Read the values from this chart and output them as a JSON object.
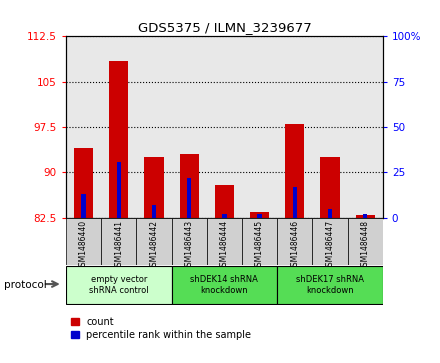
{
  "title": "GDS5375 / ILMN_3239677",
  "samples": [
    "GSM1486440",
    "GSM1486441",
    "GSM1486442",
    "GSM1486443",
    "GSM1486444",
    "GSM1486445",
    "GSM1486446",
    "GSM1486447",
    "GSM1486448"
  ],
  "red_values": [
    94.0,
    108.5,
    92.5,
    93.0,
    88.0,
    83.5,
    98.0,
    92.5,
    83.0
  ],
  "blue_values": [
    13.0,
    31.0,
    7.0,
    22.0,
    2.0,
    2.0,
    17.0,
    5.0,
    2.0
  ],
  "ylim_left": [
    82.5,
    112.5
  ],
  "ylim_right": [
    0,
    100
  ],
  "yticks_left": [
    82.5,
    90.0,
    97.5,
    105.0,
    112.5
  ],
  "yticks_right": [
    0,
    25,
    50,
    75,
    100
  ],
  "ytick_labels_left": [
    "82.5",
    "90",
    "97.5",
    "105",
    "112.5"
  ],
  "ytick_labels_right": [
    "0",
    "25",
    "50",
    "75",
    "100%"
  ],
  "groups": [
    {
      "label": "empty vector\nshRNA control",
      "start": 0,
      "end": 3,
      "color": "#ccffcc"
    },
    {
      "label": "shDEK14 shRNA\nknockdown",
      "start": 3,
      "end": 6,
      "color": "#55dd55"
    },
    {
      "label": "shDEK17 shRNA\nknockdown",
      "start": 6,
      "end": 9,
      "color": "#55dd55"
    }
  ],
  "red_color": "#cc0000",
  "blue_color": "#0000cc",
  "plot_bg_color": "#e8e8e8",
  "legend_red": "count",
  "legend_blue": "percentile rank within the sample",
  "protocol_label": "protocol"
}
